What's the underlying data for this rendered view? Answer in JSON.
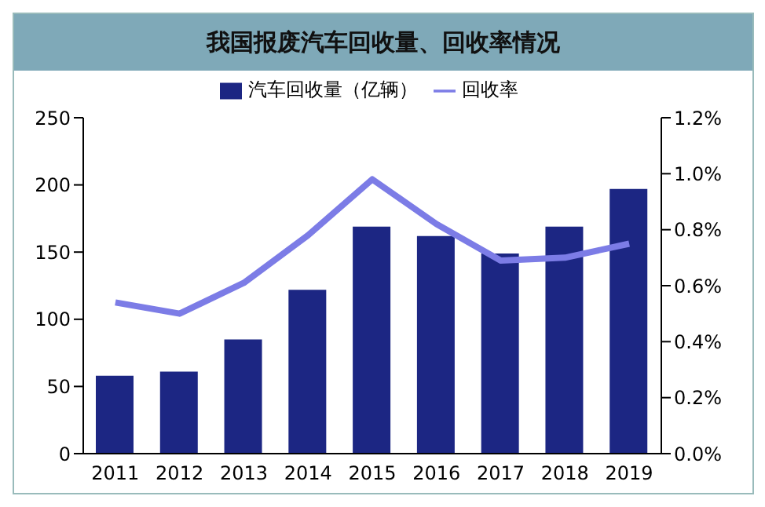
{
  "chart_data": {
    "type": "bar",
    "title": "我国报废汽车回收量、回收率情况",
    "categories": [
      "2011",
      "2012",
      "2013",
      "2014",
      "2015",
      "2016",
      "2017",
      "2018",
      "2019"
    ],
    "series": [
      {
        "name": "汽车回收量（亿辆）",
        "color": "#1c2683",
        "values": [
          58,
          61,
          85,
          122,
          169,
          162,
          149,
          169,
          197
        ]
      },
      {
        "name": "回收率",
        "type": "line",
        "axis": "y2",
        "color": "#7c7ce6",
        "values": [
          0.54,
          0.5,
          0.61,
          0.78,
          0.98,
          0.82,
          0.69,
          0.7,
          0.75
        ]
      }
    ],
    "ylim": [
      0,
      250
    ],
    "yticks": [
      0,
      50,
      100,
      150,
      200,
      250
    ],
    "y2lim": [
      0,
      1.2
    ],
    "y2ticks": [
      {
        "value": 0,
        "label": "0.0%"
      },
      {
        "value": 0.2,
        "label": "0.2%"
      },
      {
        "value": 0.4,
        "label": "0.4%"
      },
      {
        "value": 0.6,
        "label": "0.6%"
      },
      {
        "value": 0.8,
        "label": "0.8%"
      },
      {
        "value": 1,
        "label": "1.0%"
      },
      {
        "value": 1.2,
        "label": "1.2%"
      }
    ],
    "grid": false,
    "legend": "top",
    "marker": "none"
  }
}
